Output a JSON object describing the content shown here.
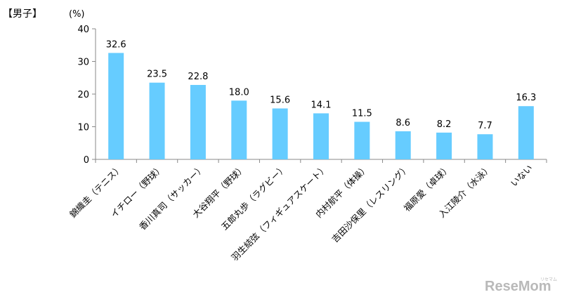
{
  "header": {
    "group": "【男子】",
    "unit": "(%)"
  },
  "logo": {
    "text": "ReseMom",
    "sub": "リセマム"
  },
  "chart_data": {
    "type": "bar",
    "categories": [
      "錦織圭（テニス）",
      "イチロー（野球）",
      "香川真司（サッカー）",
      "大谷翔平（野球）",
      "五郎丸歩（ラグビー）",
      "羽生結弦（フィギュアスケート）",
      "内村航平（体操）",
      "吉田沙保里（レスリング）",
      "福原愛（卓球）",
      "入江陵介（水泳）",
      "いない"
    ],
    "values": [
      32.6,
      23.5,
      22.8,
      18.0,
      15.6,
      14.1,
      11.5,
      8.6,
      8.2,
      7.7,
      16.3
    ],
    "value_labels": [
      "32.6",
      "23.5",
      "22.8",
      "18.0",
      "15.6",
      "14.1",
      "11.5",
      "8.6",
      "8.2",
      "7.7",
      "16.3"
    ],
    "ylim": [
      0,
      40
    ],
    "yticks": [
      0,
      10,
      20,
      30,
      40
    ],
    "ylabel": "(%)",
    "grid": false,
    "bar_color": "#66ccff"
  }
}
